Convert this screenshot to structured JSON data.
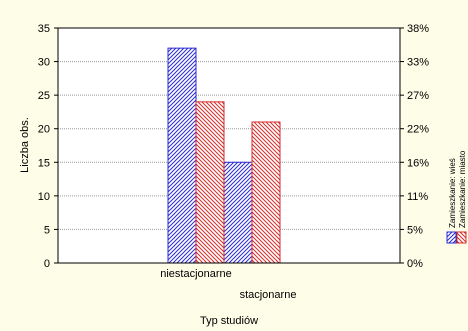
{
  "chart_data": {
    "type": "bar",
    "xlabel": "Typ studiów",
    "ylabel": "Liczba obs.",
    "ylim": [
      0,
      35
    ],
    "y_ticks": [
      0,
      5,
      10,
      15,
      20,
      25,
      30,
      35
    ],
    "y2_ticks": [
      "0%",
      "5%",
      "11%",
      "16%",
      "22%",
      "27%",
      "33%",
      "38%"
    ],
    "categories": [
      "niestacjonarne",
      "stacjonarne"
    ],
    "series": [
      {
        "name": "Zamieszkanie: wieś",
        "values": [
          32,
          15
        ],
        "color": "#2b2bd6",
        "hatch": "blue-hatch"
      },
      {
        "name": "Zamieszkanie: miasto",
        "values": [
          24,
          21
        ],
        "color": "#d62b2b",
        "hatch": "red-hatch"
      }
    ],
    "grid": true,
    "legend_position": "right (rotated)",
    "background_color": "#fdfde8"
  }
}
